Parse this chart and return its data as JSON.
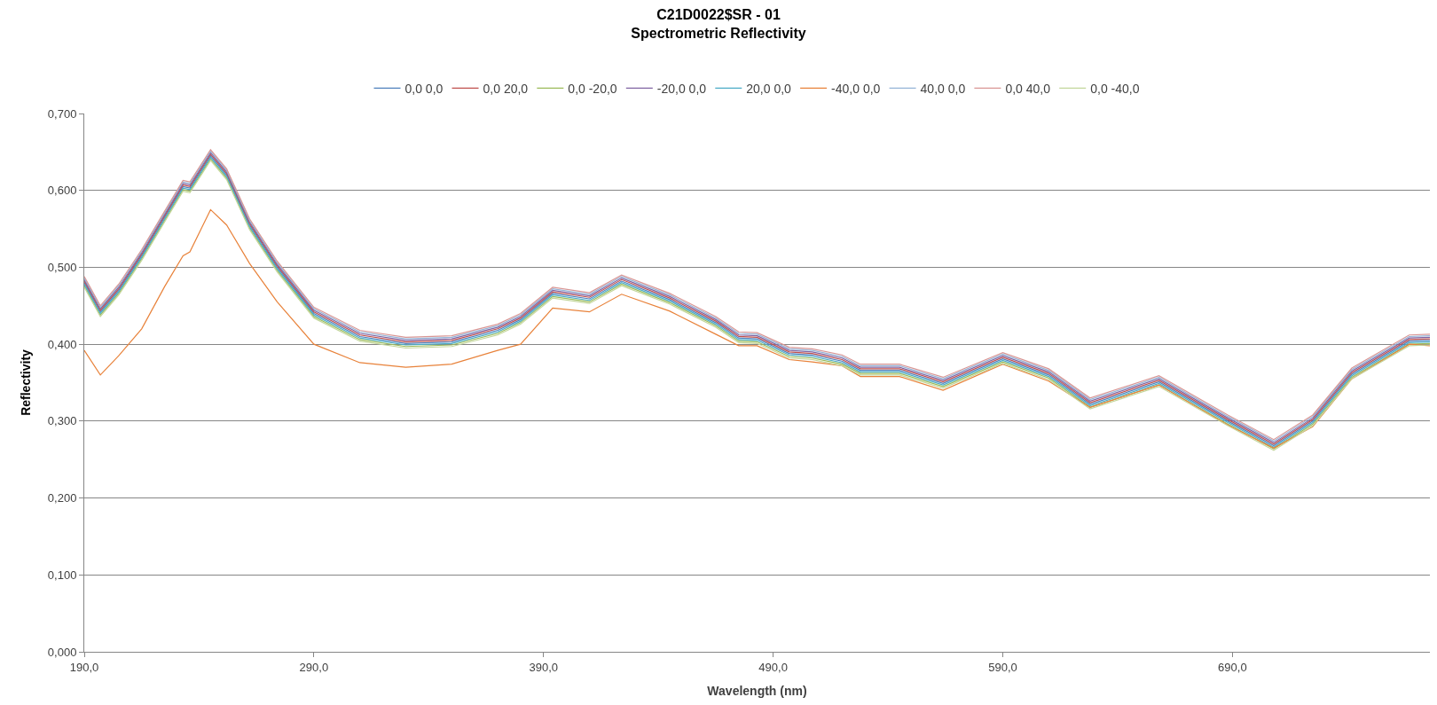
{
  "chart_data": {
    "type": "line",
    "title": "C21D0022$SR - 01",
    "subtitle": "Spectrometric Reflectivity",
    "xlabel": "Wavelength (nm)",
    "ylabel": "Reflectivity",
    "x": [
      190,
      197,
      205,
      215,
      225,
      233,
      236,
      245,
      252,
      262,
      274,
      290,
      310,
      330,
      350,
      370,
      380,
      394,
      410,
      424,
      445,
      465,
      475,
      483,
      497,
      507,
      520,
      528,
      545,
      564,
      590,
      610,
      628,
      658,
      688,
      708,
      725,
      742,
      767,
      776
    ],
    "xlim": [
      190,
      776
    ],
    "xticks": [
      {
        "value": 190,
        "label": "190,0"
      },
      {
        "value": 290,
        "label": "290,0"
      },
      {
        "value": 390,
        "label": "390,0"
      },
      {
        "value": 490,
        "label": "490,0"
      },
      {
        "value": 590,
        "label": "590,0"
      },
      {
        "value": 690,
        "label": "690,0"
      }
    ],
    "ylim": [
      0,
      0.7
    ],
    "yticks": [
      {
        "value": 0,
        "label": "0,000"
      },
      {
        "value": 0.1,
        "label": "0,100"
      },
      {
        "value": 0.2,
        "label": "0,200"
      },
      {
        "value": 0.3,
        "label": "0,300"
      },
      {
        "value": 0.4,
        "label": "0,400"
      },
      {
        "value": 0.5,
        "label": "0,500"
      },
      {
        "value": 0.6,
        "label": "0,600"
      },
      {
        "value": 0.7,
        "label": "0,700"
      }
    ],
    "grid": "y",
    "legend": "top",
    "line_style": "solid",
    "marker": "none",
    "series": [
      {
        "name": "0,0 0,0",
        "color": "#4f81bd",
        "values": [
          0.48,
          0.442,
          0.47,
          0.515,
          0.565,
          0.605,
          0.603,
          0.645,
          0.62,
          0.555,
          0.5,
          0.44,
          0.41,
          0.401,
          0.403,
          0.418,
          0.432,
          0.466,
          0.459,
          0.482,
          0.458,
          0.428,
          0.408,
          0.407,
          0.388,
          0.386,
          0.378,
          0.366,
          0.366,
          0.349,
          0.381,
          0.36,
          0.322,
          0.351,
          0.3,
          0.268,
          0.3,
          0.361,
          0.404,
          0.405
        ]
      },
      {
        "name": "0,0 20,0",
        "color": "#c0504d",
        "values": [
          0.482,
          0.444,
          0.472,
          0.517,
          0.567,
          0.607,
          0.605,
          0.647,
          0.622,
          0.557,
          0.502,
          0.442,
          0.412,
          0.403,
          0.405,
          0.42,
          0.434,
          0.468,
          0.461,
          0.484,
          0.46,
          0.43,
          0.41,
          0.409,
          0.39,
          0.388,
          0.38,
          0.368,
          0.368,
          0.351,
          0.383,
          0.362,
          0.324,
          0.353,
          0.302,
          0.27,
          0.302,
          0.363,
          0.406,
          0.407
        ]
      },
      {
        "name": "0,0 -20,0",
        "color": "#9bbb59",
        "values": [
          0.476,
          0.438,
          0.466,
          0.511,
          0.561,
          0.601,
          0.599,
          0.641,
          0.616,
          0.551,
          0.496,
          0.436,
          0.406,
          0.397,
          0.399,
          0.414,
          0.428,
          0.462,
          0.455,
          0.478,
          0.454,
          0.424,
          0.404,
          0.403,
          0.384,
          0.382,
          0.374,
          0.362,
          0.362,
          0.345,
          0.377,
          0.356,
          0.318,
          0.347,
          0.296,
          0.264,
          0.296,
          0.357,
          0.4,
          0.401
        ]
      },
      {
        "name": "-20,0 0,0",
        "color": "#8064a2",
        "values": [
          0.484,
          0.446,
          0.474,
          0.519,
          0.569,
          0.609,
          0.607,
          0.649,
          0.624,
          0.559,
          0.504,
          0.444,
          0.414,
          0.405,
          0.407,
          0.422,
          0.436,
          0.47,
          0.463,
          0.486,
          0.462,
          0.432,
          0.412,
          0.411,
          0.392,
          0.39,
          0.382,
          0.37,
          0.37,
          0.353,
          0.385,
          0.364,
          0.326,
          0.355,
          0.304,
          0.272,
          0.304,
          0.365,
          0.408,
          0.409
        ]
      },
      {
        "name": "20,0 0,0",
        "color": "#4bacc6",
        "values": [
          0.478,
          0.44,
          0.468,
          0.513,
          0.563,
          0.603,
          0.601,
          0.643,
          0.618,
          0.553,
          0.498,
          0.438,
          0.408,
          0.399,
          0.401,
          0.416,
          0.43,
          0.464,
          0.457,
          0.48,
          0.456,
          0.426,
          0.406,
          0.405,
          0.386,
          0.384,
          0.376,
          0.364,
          0.364,
          0.347,
          0.379,
          0.358,
          0.32,
          0.349,
          0.298,
          0.266,
          0.298,
          0.359,
          0.402,
          0.403
        ]
      },
      {
        "name": "-40,0 0,0",
        "color": "#e8823a",
        "values": [
          0.392,
          0.36,
          0.385,
          0.42,
          0.475,
          0.515,
          0.52,
          0.575,
          0.555,
          0.505,
          0.455,
          0.4,
          0.376,
          0.37,
          0.374,
          0.392,
          0.4,
          0.447,
          0.442,
          0.465,
          0.443,
          0.413,
          0.398,
          0.398,
          0.38,
          0.377,
          0.372,
          0.358,
          0.358,
          0.34,
          0.374,
          0.352,
          0.318,
          0.347,
          0.295,
          0.265,
          0.293,
          0.355,
          0.4,
          0.398
        ]
      },
      {
        "name": "40,0 0,0",
        "color": "#95b3d7",
        "values": [
          0.486,
          0.448,
          0.476,
          0.521,
          0.571,
          0.611,
          0.609,
          0.651,
          0.626,
          0.561,
          0.506,
          0.446,
          0.416,
          0.407,
          0.409,
          0.424,
          0.438,
          0.472,
          0.465,
          0.488,
          0.464,
          0.434,
          0.414,
          0.413,
          0.394,
          0.392,
          0.384,
          0.372,
          0.372,
          0.355,
          0.387,
          0.366,
          0.328,
          0.357,
          0.306,
          0.274,
          0.306,
          0.367,
          0.41,
          0.411
        ]
      },
      {
        "name": "0,0 40,0",
        "color": "#d99694",
        "values": [
          0.488,
          0.45,
          0.478,
          0.523,
          0.573,
          0.613,
          0.611,
          0.653,
          0.628,
          0.563,
          0.508,
          0.448,
          0.418,
          0.409,
          0.411,
          0.426,
          0.44,
          0.474,
          0.467,
          0.49,
          0.466,
          0.436,
          0.416,
          0.415,
          0.396,
          0.394,
          0.386,
          0.374,
          0.374,
          0.357,
          0.389,
          0.368,
          0.33,
          0.359,
          0.308,
          0.276,
          0.308,
          0.369,
          0.412,
          0.413
        ]
      },
      {
        "name": "0,0 -40,0",
        "color": "#c3d69b",
        "values": [
          0.474,
          0.436,
          0.464,
          0.509,
          0.559,
          0.599,
          0.597,
          0.639,
          0.614,
          0.549,
          0.494,
          0.434,
          0.404,
          0.395,
          0.397,
          0.412,
          0.426,
          0.46,
          0.453,
          0.476,
          0.452,
          0.422,
          0.402,
          0.401,
          0.382,
          0.38,
          0.372,
          0.36,
          0.36,
          0.343,
          0.375,
          0.354,
          0.316,
          0.345,
          0.294,
          0.262,
          0.294,
          0.355,
          0.398,
          0.399
        ]
      }
    ]
  }
}
